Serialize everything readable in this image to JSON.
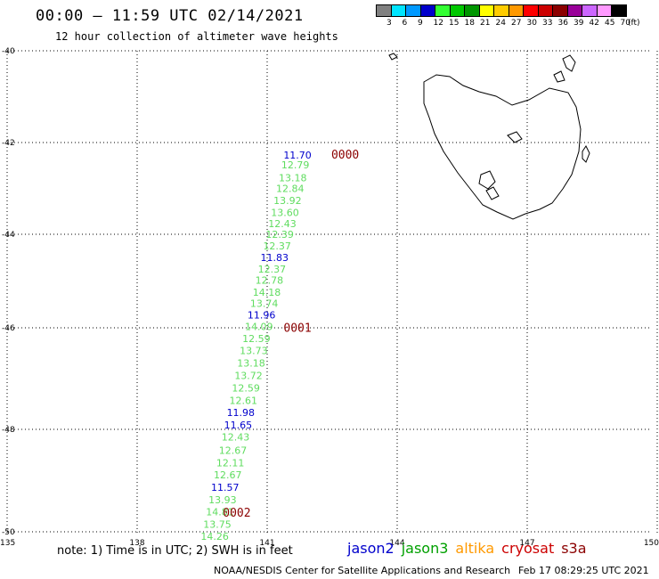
{
  "header": {
    "title": "00:00 – 11:59 UTC 02/14/2021",
    "subtitle": "12 hour collection of altimeter wave heights"
  },
  "colorbar": {
    "colors": [
      "#808080",
      "#00e5ff",
      "#0099ff",
      "#0000cc",
      "#33ff33",
      "#00c800",
      "#009600",
      "#ffff00",
      "#ffcc00",
      "#ff9900",
      "#ff0000",
      "#cc0000",
      "#8b0000",
      "#990099",
      "#cc66ff",
      "#ff99ff",
      "#000000"
    ],
    "labels": [
      "3",
      "6",
      "9",
      "12",
      "15",
      "18",
      "21",
      "24",
      "27",
      "30",
      "33",
      "36",
      "39",
      "42",
      "45",
      "70",
      "(ft)"
    ]
  },
  "axes": {
    "lat_labels": [
      "-40",
      "-42",
      "-44",
      "-46",
      "-48",
      "-50"
    ],
    "lon_labels": [
      "135",
      "138",
      "141",
      "144",
      "147",
      "150"
    ]
  },
  "track": {
    "points": [
      {
        "lon": 141.7,
        "lat": -42.35,
        "value": "11.70",
        "sat": "jason2"
      },
      {
        "lon": 141.65,
        "lat": -42.56,
        "value": "12.79",
        "sat": "jason3"
      },
      {
        "lon": 141.59,
        "lat": -42.84,
        "value": "13.18",
        "sat": "jason3"
      },
      {
        "lon": 141.53,
        "lat": -43.08,
        "value": "12.84",
        "sat": "jason3"
      },
      {
        "lon": 141.47,
        "lat": -43.34,
        "value": "13.92",
        "sat": "jason3"
      },
      {
        "lon": 141.41,
        "lat": -43.6,
        "value": "13.60",
        "sat": "jason3"
      },
      {
        "lon": 141.35,
        "lat": -43.84,
        "value": "12.43",
        "sat": "jason3"
      },
      {
        "lon": 141.29,
        "lat": -44.08,
        "value": "12.39",
        "sat": "jason3"
      },
      {
        "lon": 141.23,
        "lat": -44.32,
        "value": "12.37",
        "sat": "jason3"
      },
      {
        "lon": 141.17,
        "lat": -44.57,
        "value": "11.83",
        "sat": "jason2"
      },
      {
        "lon": 141.11,
        "lat": -44.82,
        "value": "12.37",
        "sat": "jason3"
      },
      {
        "lon": 141.05,
        "lat": -45.06,
        "value": "12.78",
        "sat": "jason3"
      },
      {
        "lon": 140.99,
        "lat": -45.31,
        "value": "14.18",
        "sat": "jason3"
      },
      {
        "lon": 140.93,
        "lat": -45.55,
        "value": "13.74",
        "sat": "jason3"
      },
      {
        "lon": 140.87,
        "lat": -45.8,
        "value": "11.96",
        "sat": "jason2"
      },
      {
        "lon": 140.81,
        "lat": -46.04,
        "value": "14.09",
        "sat": "jason3"
      },
      {
        "lon": 140.75,
        "lat": -46.28,
        "value": "12.59",
        "sat": "jason3"
      },
      {
        "lon": 140.69,
        "lat": -46.52,
        "value": "13.73",
        "sat": "jason3"
      },
      {
        "lon": 140.63,
        "lat": -46.76,
        "value": "13.18",
        "sat": "jason3"
      },
      {
        "lon": 140.57,
        "lat": -47.01,
        "value": "13.72",
        "sat": "jason3"
      },
      {
        "lon": 140.51,
        "lat": -47.25,
        "value": "12.59",
        "sat": "jason3"
      },
      {
        "lon": 140.45,
        "lat": -47.5,
        "value": "12.61",
        "sat": "jason3"
      },
      {
        "lon": 140.39,
        "lat": -47.74,
        "value": "11.98",
        "sat": "jason2"
      },
      {
        "lon": 140.33,
        "lat": -47.98,
        "value": "11.65",
        "sat": "jason2"
      },
      {
        "lon": 140.27,
        "lat": -48.22,
        "value": "12.43",
        "sat": "jason3"
      },
      {
        "lon": 140.21,
        "lat": -48.48,
        "value": "12.67",
        "sat": "jason3"
      },
      {
        "lon": 140.15,
        "lat": -48.72,
        "value": "12.11",
        "sat": "jason3"
      },
      {
        "lon": 140.09,
        "lat": -48.96,
        "value": "12.67",
        "sat": "jason3"
      },
      {
        "lon": 140.03,
        "lat": -49.2,
        "value": "11.57",
        "sat": "jason2"
      },
      {
        "lon": 139.97,
        "lat": -49.44,
        "value": "13.93",
        "sat": "jason3"
      },
      {
        "lon": 139.91,
        "lat": -49.68,
        "value": "14.81",
        "sat": "jason3"
      },
      {
        "lon": 139.85,
        "lat": -49.92,
        "value": "13.75",
        "sat": "jason3"
      },
      {
        "lon": 139.79,
        "lat": -50.16,
        "value": "14.26",
        "sat": "jason3"
      }
    ],
    "markers": [
      {
        "lon": 142.8,
        "lat": -42.35,
        "text": "0000"
      },
      {
        "lon": 141.7,
        "lat": -46.08,
        "text": "0001"
      },
      {
        "lon": 140.3,
        "lat": -49.7,
        "text": "0002"
      }
    ]
  },
  "footer": {
    "note": "note: 1) Time is in UTC; 2) SWH is in feet",
    "credit": "NOAA/NESDIS Center for Satellite Applications and Research",
    "timestamp": "Feb 17 08:29:25 UTC 2021"
  },
  "legend": [
    {
      "label": "jason2",
      "color": "#0000cc"
    },
    {
      "label": "jason3",
      "color": "#00a000"
    },
    {
      "label": "altika",
      "color": "#ff9900"
    },
    {
      "label": "cryosat",
      "color": "#cc0000"
    },
    {
      "label": "s3a",
      "color": "#8b0000"
    }
  ],
  "colors": {
    "jason2": "#0000cc",
    "jason3": "#5fdc5f",
    "marker": "#8b0000"
  }
}
